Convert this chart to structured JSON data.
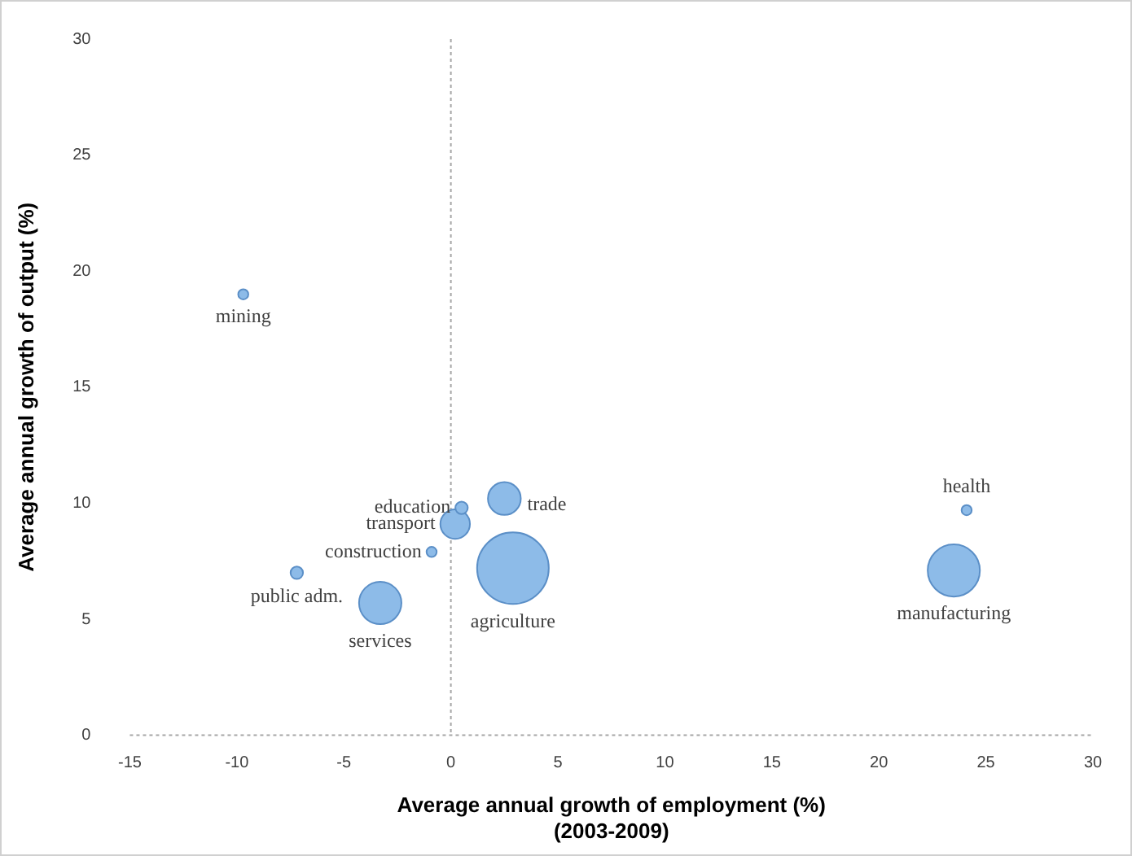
{
  "chart_data": {
    "type": "bubble",
    "xlabel": "Average annual growth of employment (%)\n(2003-2009)",
    "ylabel": "Average annual growth of output (%)",
    "xlim": [
      -15,
      30
    ],
    "xticks": [
      -15,
      -10,
      -5,
      0,
      5,
      10,
      15,
      20,
      25,
      30
    ],
    "ylim": [
      0,
      30
    ],
    "yticks": [
      0,
      5,
      10,
      15,
      20,
      25,
      30
    ],
    "grid": false,
    "legend": false,
    "ref_lines": [
      {
        "axis": "x",
        "value": 0,
        "line_style": "dotted",
        "color": "#a6a6a6"
      }
    ],
    "series": [
      {
        "name": "mining",
        "color": "#8dbbe8",
        "x": [
          -9.7
        ],
        "values": [
          19.0
        ],
        "sizes": [
          0.02
        ]
      },
      {
        "name": "health",
        "color": "#8dbbe8",
        "x": [
          24.1
        ],
        "values": [
          9.7
        ],
        "sizes": [
          0.02
        ]
      },
      {
        "name": "manufacturing",
        "color": "#8dbbe8",
        "x": [
          23.5
        ],
        "values": [
          7.1
        ],
        "sizes": [
          0.53
        ]
      },
      {
        "name": "trade",
        "color": "#8dbbe8",
        "x": [
          2.5
        ],
        "values": [
          10.2
        ],
        "sizes": [
          0.21
        ]
      },
      {
        "name": "agriculture",
        "color": "#8dbbe8",
        "x": [
          2.9
        ],
        "values": [
          7.2
        ],
        "sizes": [
          1
        ]
      },
      {
        "name": "education",
        "color": "#8dbbe8",
        "x": [
          0.5
        ],
        "values": [
          9.8
        ],
        "sizes": [
          0.03
        ]
      },
      {
        "name": "transport",
        "color": "#8dbbe8",
        "x": [
          0.2
        ],
        "values": [
          9.1
        ],
        "sizes": [
          0.17
        ]
      },
      {
        "name": "construction",
        "color": "#8dbbe8",
        "x": [
          -0.9
        ],
        "values": [
          7.9
        ],
        "sizes": [
          0.02
        ]
      },
      {
        "name": "public adm.",
        "color": "#8dbbe8",
        "x": [
          -7.2
        ],
        "values": [
          7.0
        ],
        "sizes": [
          0.03
        ]
      },
      {
        "name": "services",
        "color": "#8dbbe8",
        "x": [
          -3.3
        ],
        "values": [
          5.7
        ],
        "sizes": [
          0.35
        ]
      }
    ]
  }
}
